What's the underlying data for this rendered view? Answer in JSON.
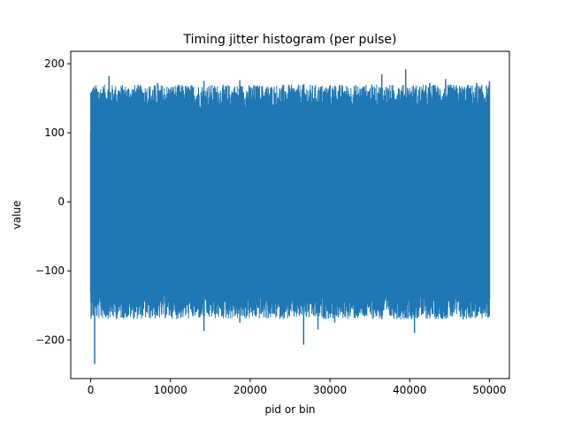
{
  "chart_data": {
    "type": "line",
    "title": "Timing jitter histogram (per pulse)",
    "xlabel": "pid or bin",
    "ylabel": "value",
    "xlim": [
      -2500,
      52500
    ],
    "ylim": [
      -256,
      218
    ],
    "x_ticks": [
      0,
      10000,
      20000,
      30000,
      40000,
      50000
    ],
    "x_tick_labels": [
      "0",
      "10000",
      "20000",
      "30000",
      "40000",
      "50000"
    ],
    "y_ticks": [
      -200,
      -100,
      0,
      100,
      200
    ],
    "y_tick_labels": [
      "−200",
      "−100",
      "0",
      "100",
      "200"
    ],
    "grid": false,
    "series": [
      {
        "color": "#1f77b4",
        "x_start": 0,
        "x_end": 50000,
        "typical_range": [
          -130,
          130
        ],
        "max": 192,
        "min": -235,
        "x": [
          0,
          500,
          2300,
          4100,
          6200,
          8400,
          10300,
          12600,
          14200,
          16500,
          18700,
          20800,
          22600,
          24400,
          26700,
          28500,
          30600,
          32300,
          34400,
          36500,
          38600,
          39500,
          40600,
          42500,
          44500,
          46700,
          48400,
          50000
        ],
        "upper": [
          100,
          145,
          182,
          162,
          140,
          172,
          150,
          160,
          175,
          158,
          176,
          155,
          165,
          160,
          170,
          155,
          168,
          152,
          160,
          185,
          165,
          192,
          150,
          172,
          178,
          160,
          172,
          175
        ],
        "lower": [
          -130,
          -235,
          -145,
          -155,
          -163,
          -165,
          -160,
          -155,
          -187,
          -165,
          -175,
          -150,
          -155,
          -160,
          -207,
          -185,
          -175,
          -165,
          -160,
          -170,
          -165,
          -168,
          -190,
          -165,
          -160,
          -170,
          -165,
          -140
        ]
      }
    ]
  }
}
